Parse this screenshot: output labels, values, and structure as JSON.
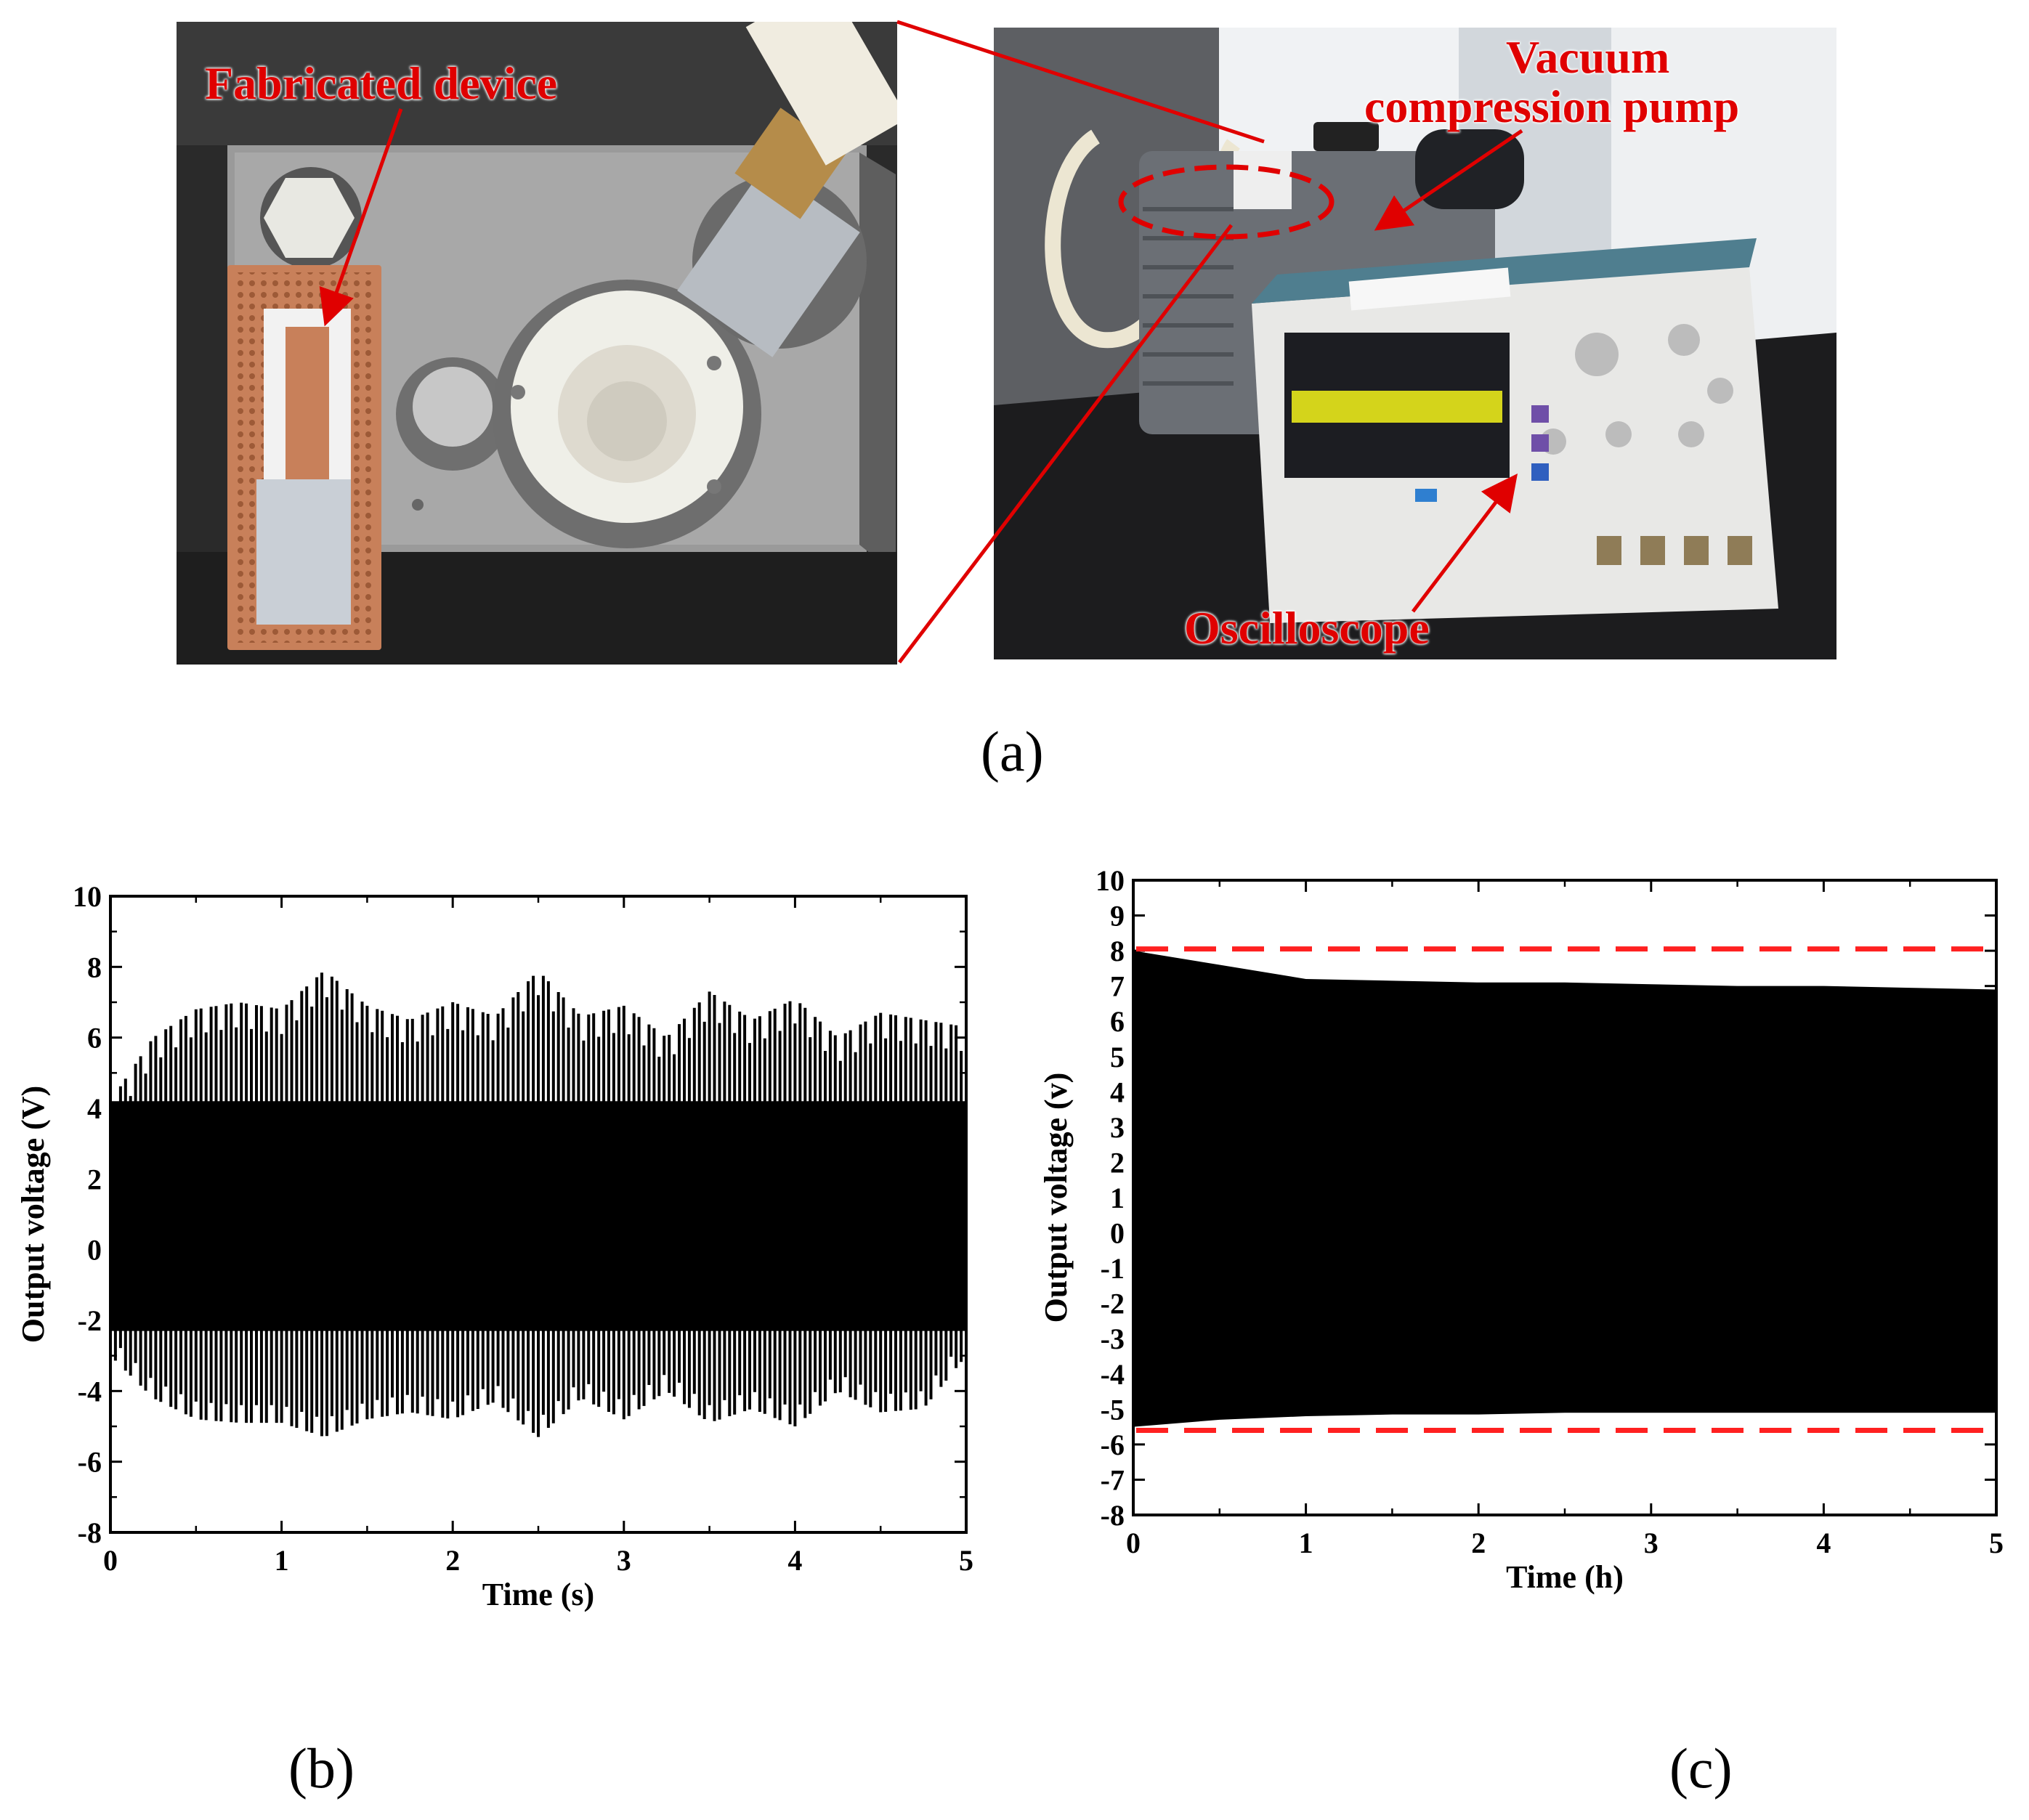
{
  "panel_labels": {
    "a": "(a)",
    "b": "(b)",
    "c": "(c)"
  },
  "callouts": {
    "fabricated_device": "Fabricated device",
    "vacuum_line1": "Vacuum",
    "vacuum_line2": "compression pump",
    "oscilloscope": "Oscilloscope"
  },
  "colors": {
    "callout": "#e00000",
    "copper": "#c8805a",
    "signal": "#000000",
    "reference_line": "#ff2020",
    "scope_trace": "#f5f51a"
  },
  "chart_data": [
    {
      "type": "line",
      "xlabel": "Time (s)",
      "ylabel": "Output voltage (V)",
      "xlim": [
        0,
        5
      ],
      "ylim": [
        -8,
        10
      ],
      "xticks": [
        0,
        1,
        2,
        3,
        4,
        5
      ],
      "yticks": [
        -8,
        -6,
        -4,
        -2,
        0,
        2,
        4,
        6,
        8,
        10
      ],
      "series": [
        {
          "x": [
            0,
            0.25,
            0.5,
            0.75,
            1.0,
            1.25,
            1.5,
            1.75,
            2.0,
            2.25,
            2.5,
            2.75,
            3.0,
            3.25,
            3.5,
            3.75,
            4.0,
            4.25,
            4.5,
            4.75,
            5.0
          ],
          "upper_envelope": [
            4.2,
            6.0,
            6.8,
            7.0,
            6.8,
            7.9,
            6.9,
            6.5,
            7.0,
            6.6,
            7.9,
            6.6,
            6.9,
            6.0,
            7.3,
            6.5,
            7.1,
            6.0,
            6.7,
            6.5,
            6.3
          ],
          "lower_envelope": [
            -3.0,
            -4.2,
            -4.8,
            -4.9,
            -4.9,
            -5.3,
            -4.8,
            -4.6,
            -4.8,
            -4.3,
            -5.3,
            -4.2,
            -4.8,
            -4.0,
            -4.9,
            -4.5,
            -5.0,
            -4.0,
            -4.6,
            -4.5,
            -3.0
          ],
          "baseline_upper": 4.2,
          "baseline_lower": -2.3
        }
      ]
    },
    {
      "type": "area",
      "xlabel": "Time (h)",
      "ylabel": "Output voltage (v)",
      "xlim": [
        0,
        5
      ],
      "ylim": [
        -8,
        10
      ],
      "xticks": [
        0,
        1,
        2,
        3,
        4,
        5
      ],
      "yticks": [
        -8,
        -7,
        -6,
        -5,
        -4,
        -3,
        -2,
        -1,
        0,
        1,
        2,
        3,
        4,
        5,
        6,
        7,
        8,
        9,
        10
      ],
      "series": [
        {
          "x": [
            0,
            0.5,
            1.0,
            1.5,
            2.0,
            2.5,
            3.0,
            3.5,
            4.0,
            4.5,
            5.0
          ],
          "upper": [
            8.0,
            7.6,
            7.2,
            7.15,
            7.1,
            7.1,
            7.05,
            7.0,
            7.0,
            6.95,
            6.9
          ],
          "lower": [
            -5.5,
            -5.3,
            -5.2,
            -5.15,
            -5.15,
            -5.1,
            -5.1,
            -5.1,
            -5.1,
            -5.1,
            -5.1
          ]
        }
      ],
      "reference_lines": [
        8.05,
        -5.6
      ]
    }
  ]
}
